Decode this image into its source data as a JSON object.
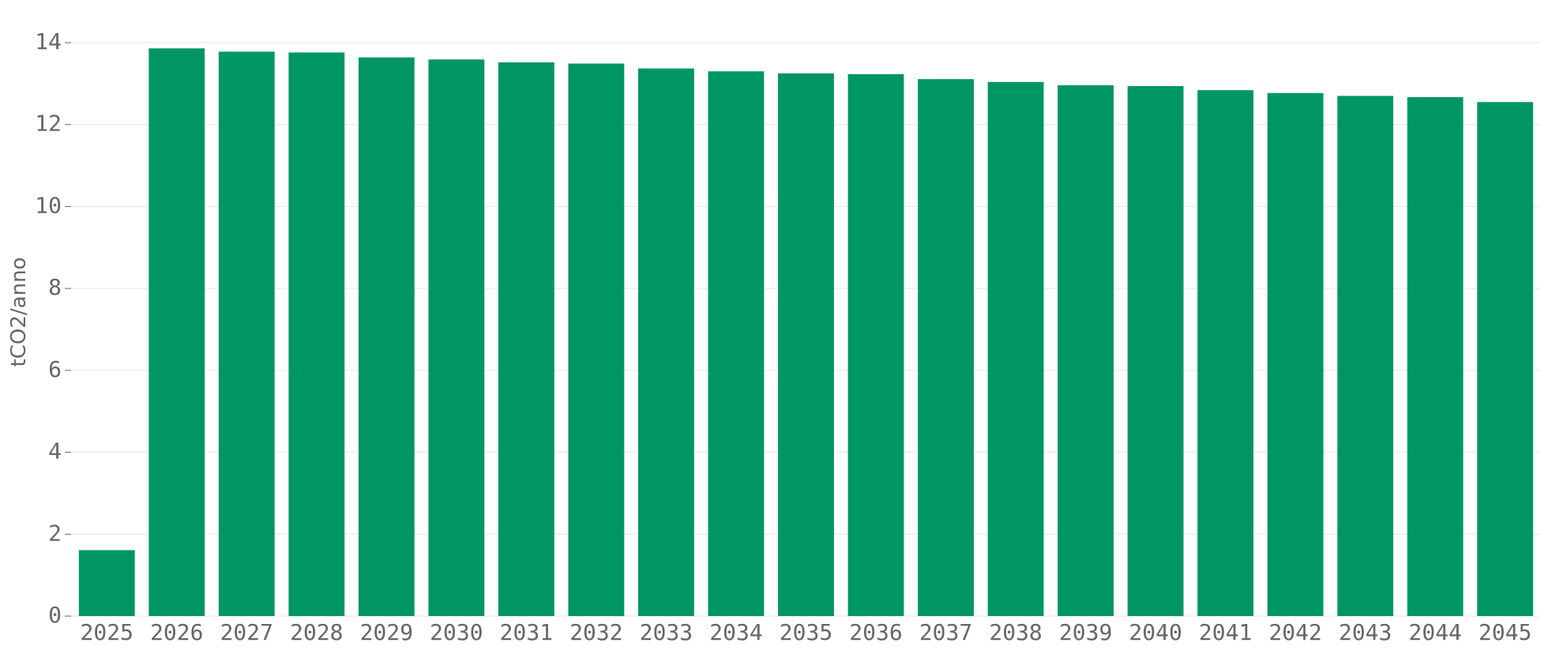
{
  "chart_data": {
    "type": "bar",
    "y_label": "tCO2/anno",
    "categories": [
      "2025",
      "2026",
      "2027",
      "2028",
      "2029",
      "2030",
      "2031",
      "2032",
      "2033",
      "2034",
      "2035",
      "2036",
      "2037",
      "2038",
      "2039",
      "2040",
      "2041",
      "2042",
      "2043",
      "2044",
      "2045"
    ],
    "values": [
      1.61,
      13.86,
      13.78,
      13.76,
      13.64,
      13.59,
      13.52,
      13.49,
      13.37,
      13.3,
      13.25,
      13.23,
      13.11,
      13.04,
      12.96,
      12.94,
      12.84,
      12.77,
      12.7,
      12.67,
      12.55
    ],
    "color": "#009663",
    "ylim": [
      0,
      14
    ],
    "yticks": [
      0,
      2,
      4,
      6,
      8,
      10,
      12,
      14
    ],
    "grid": true
  }
}
